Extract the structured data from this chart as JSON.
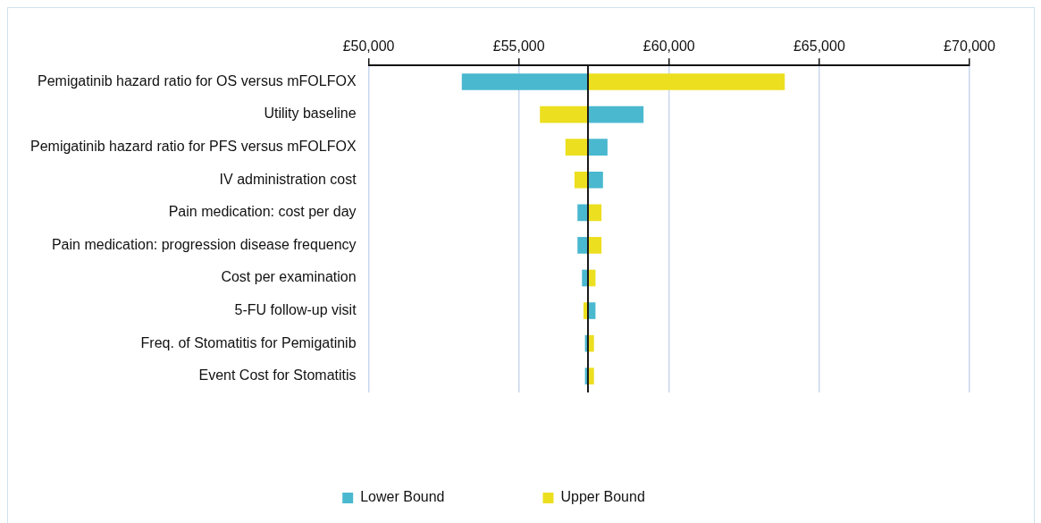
{
  "chart_data": {
    "type": "bar",
    "orientation": "horizontal",
    "categories": [
      "Pemigatinib hazard ratio for OS versus mFOLFOX",
      "Utility baseline",
      "Pemigatinib hazard ratio for PFS versus mFOLFOX",
      "IV administration cost",
      "Pain medication: cost per day",
      "Pain medication: progression disease frequency",
      "Cost per examination",
      "5-FU follow-up visit",
      "Freq. of Stomatitis for Pemigatinib",
      "Event Cost for Stomatitis"
    ],
    "series": [
      {
        "name": "Lower Bound",
        "color": "#4ab8cf",
        "base": [
          57300,
          57300,
          57300,
          57300,
          57300,
          57300,
          57300,
          57300,
          57300,
          57300
        ],
        "values": [
          -4200,
          1850,
          650,
          500,
          -350,
          -350,
          -200,
          250,
          -100,
          -100
        ]
      },
      {
        "name": "Upper Bound",
        "color": "#ecdf1f",
        "base": [
          57300,
          57300,
          57300,
          57300,
          57300,
          57300,
          57300,
          57300,
          57300,
          57300
        ],
        "values": [
          6550,
          -1600,
          -750,
          -450,
          450,
          450,
          250,
          -150,
          200,
          200
        ]
      }
    ],
    "xlim": [
      50000,
      70000
    ],
    "xticks": [
      {
        "value": 50000,
        "label": "£50,000"
      },
      {
        "value": 55000,
        "label": "£55,000"
      },
      {
        "value": 60000,
        "label": "£60,000"
      },
      {
        "value": 65000,
        "label": "£65,000"
      },
      {
        "value": 70000,
        "label": "£70,000"
      }
    ],
    "ref_lines": [
      {
        "axis": "x",
        "value": 57300,
        "color": "#1a1a1a"
      }
    ],
    "grid": "x",
    "legend": "bottom"
  }
}
